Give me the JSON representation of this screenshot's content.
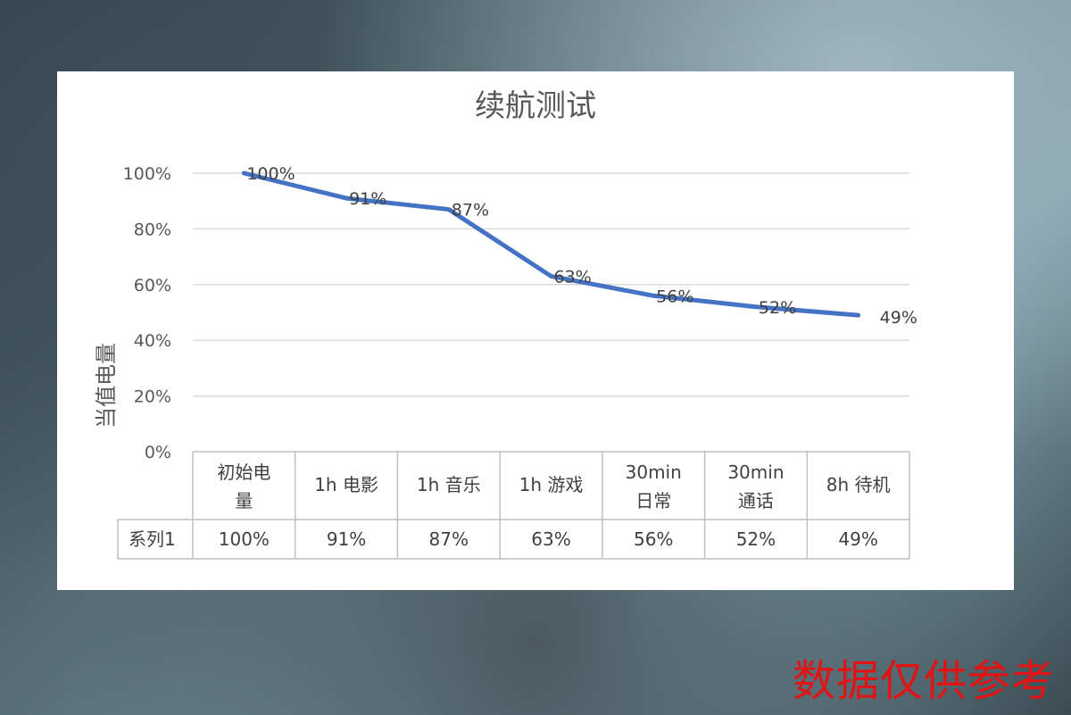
{
  "chart_data": {
    "type": "line",
    "title": "续航测试",
    "xlabel": "",
    "ylabel": "当值电量",
    "categories": [
      "初始电量",
      "1h 电影",
      "1h 音乐",
      "1h 游戏",
      "30min 日常",
      "30min 通话",
      "8h 待机"
    ],
    "category_lines": [
      [
        "初始电",
        "量"
      ],
      [
        "1h 电影"
      ],
      [
        "1h 音乐"
      ],
      [
        "1h 游戏"
      ],
      [
        "30min",
        "日常"
      ],
      [
        "30min",
        "通话"
      ],
      [
        "8h 待机"
      ]
    ],
    "series": [
      {
        "name": "系列1",
        "values": [
          100,
          91,
          87,
          63,
          56,
          52,
          49
        ],
        "labels": [
          "100%",
          "91%",
          "87%",
          "63%",
          "56%",
          "52%",
          "49%"
        ]
      }
    ],
    "yticks": [
      "0%",
      "20%",
      "40%",
      "60%",
      "80%",
      "100%"
    ],
    "ylim": [
      0,
      100
    ],
    "grid": true,
    "data_table": true,
    "line_color": "#4472c4"
  },
  "watermark": "数据仅供参考"
}
